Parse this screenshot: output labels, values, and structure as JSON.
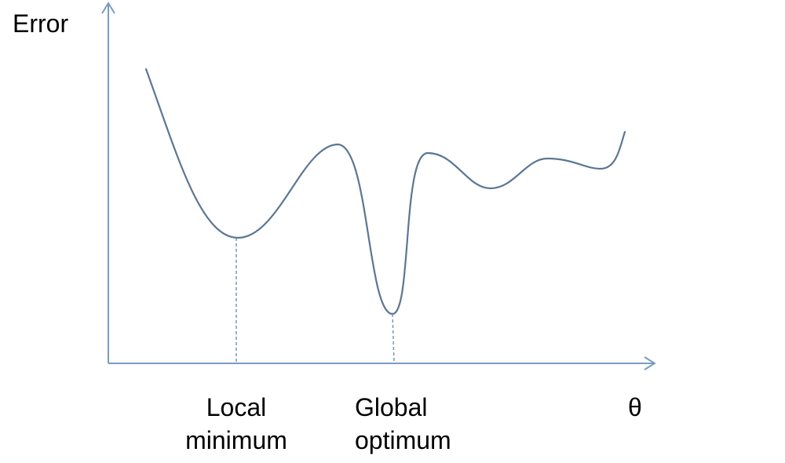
{
  "diagram": {
    "y_axis_label": "Error",
    "x_axis_label": "θ",
    "local_minimum": {
      "line1": "Local",
      "line2": "minimum"
    },
    "global_optimum": {
      "line1": "Global",
      "line2": "optimum"
    },
    "colors": {
      "curve": "#5b7793",
      "axis": "#7a9cc0",
      "guide": "#6f8fae",
      "text": "#000000"
    }
  }
}
